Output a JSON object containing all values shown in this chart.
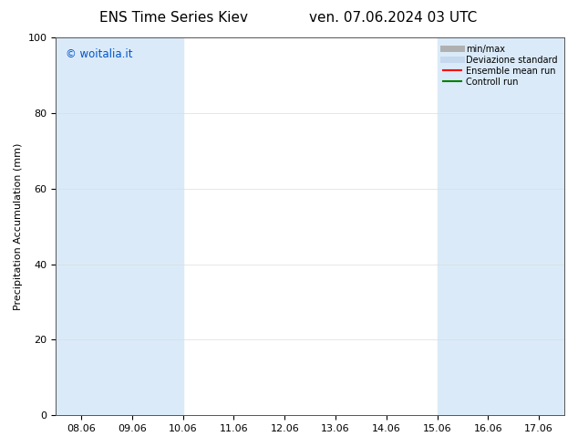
{
  "title_left": "ENS Time Series Kiev",
  "title_right": "ven. 07.06.2024 03 UTC",
  "ylabel": "Precipitation Accumulation (mm)",
  "ylim": [
    0,
    100
  ],
  "yticks": [
    0,
    20,
    40,
    60,
    80,
    100
  ],
  "xtick_labels": [
    "08.06",
    "09.06",
    "10.06",
    "11.06",
    "12.06",
    "13.06",
    "14.06",
    "15.06",
    "16.06",
    "17.06"
  ],
  "watermark": "© woitalia.it",
  "watermark_color": "#0055cc",
  "bg_color": "#ffffff",
  "plot_bg_color": "#ffffff",
  "shade_color": "#daeaf8",
  "legend_items": [
    {
      "label": "min/max",
      "color": "#b0b0b0",
      "lw": 5
    },
    {
      "label": "Deviazione standard",
      "color": "#c5d8ee",
      "lw": 5
    },
    {
      "label": "Ensemble mean run",
      "color": "#ff0000",
      "lw": 1.5
    },
    {
      "label": "Controll run",
      "color": "#008000",
      "lw": 1.5
    }
  ],
  "title_fontsize": 11,
  "label_fontsize": 8,
  "tick_fontsize": 8,
  "grid_color": "#dddddd",
  "figsize": [
    6.34,
    4.9
  ],
  "dpi": 100,
  "shaded_bands": [
    {
      "xmin": 0.0,
      "xmax": 1.5
    },
    {
      "xmin": 1.5,
      "xmax": 2.5
    },
    {
      "xmin": 7.0,
      "xmax": 8.5
    },
    {
      "xmin": 8.5,
      "xmax": 9.5
    }
  ]
}
